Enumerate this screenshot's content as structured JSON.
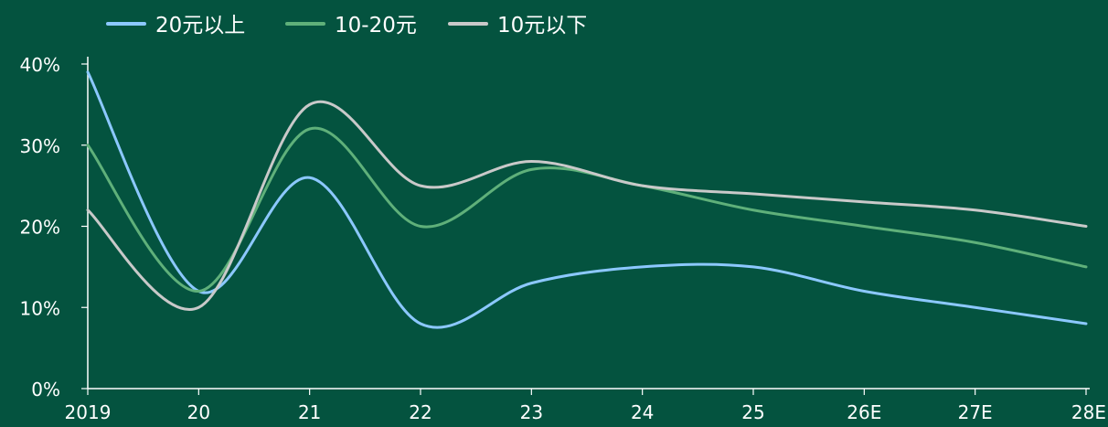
{
  "chart_data": {
    "type": "line",
    "title": "",
    "xlabel": "",
    "ylabel": "",
    "categories": [
      "2019",
      "20",
      "21",
      "22",
      "23",
      "24",
      "25",
      "26E",
      "27E",
      "28E"
    ],
    "ylim": [
      0,
      40
    ],
    "y_ticks": [
      "0%",
      "10%",
      "20%",
      "30%",
      "40%"
    ],
    "y_tick_values": [
      0,
      10,
      20,
      30,
      40
    ],
    "grid": false,
    "legend_position": "top-left",
    "series": [
      {
        "name": "20元以上",
        "color": "#8cc8ff",
        "values": [
          39,
          12,
          26,
          8,
          13,
          15,
          15,
          12,
          10,
          8
        ]
      },
      {
        "name": "10-20元",
        "color": "#5fb07a",
        "values": [
          30,
          12,
          32,
          20,
          27,
          25,
          22,
          20,
          18,
          15
        ]
      },
      {
        "name": "10元以下",
        "color": "#c9c9c9",
        "values": [
          22,
          10,
          35,
          25,
          28,
          25,
          24,
          23,
          22,
          20
        ]
      }
    ]
  }
}
